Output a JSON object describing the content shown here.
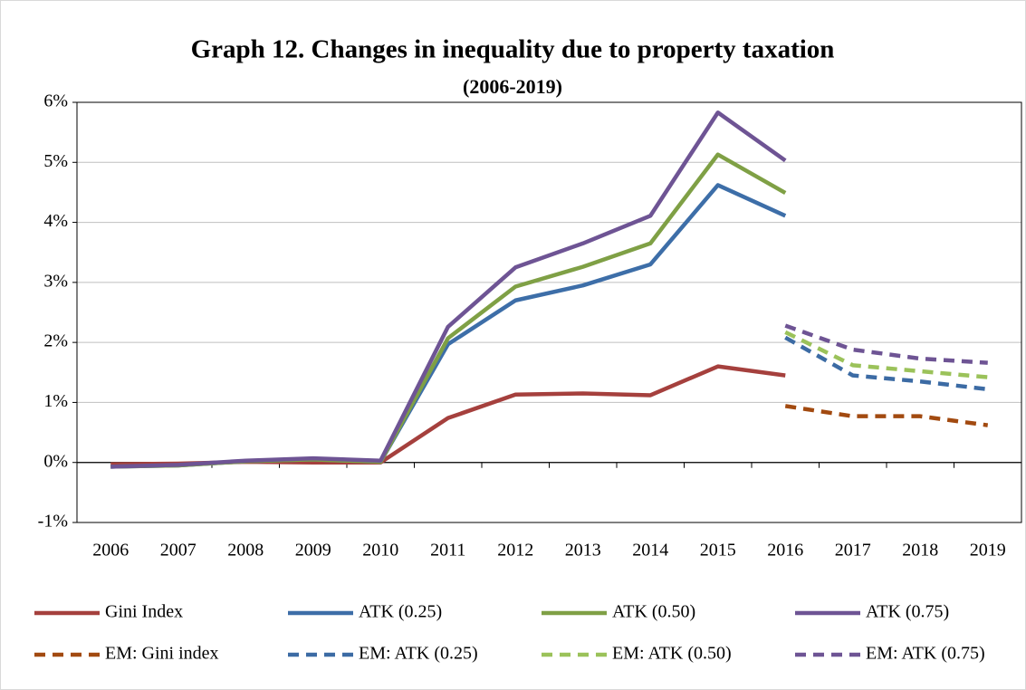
{
  "chart_data": {
    "type": "line",
    "title": "Graph 12. Changes in inequality due to property taxation",
    "subtitle": "(2006-2019)",
    "categories": [
      "2006",
      "2007",
      "2008",
      "2009",
      "2010",
      "2011",
      "2012",
      "2013",
      "2014",
      "2015",
      "2016",
      "2017",
      "2018",
      "2019"
    ],
    "series": [
      {
        "name": "Gini Index",
        "color": "#a5403d",
        "line_style": "solid",
        "values": [
          -0.03,
          -0.02,
          0.01,
          0.0,
          0.0,
          0.74,
          1.13,
          1.15,
          1.12,
          1.6,
          1.45,
          null,
          null,
          null
        ]
      },
      {
        "name": "ATK (0.25)",
        "color": "#3d6ea8",
        "line_style": "solid",
        "values": [
          -0.07,
          -0.05,
          0.02,
          0.05,
          0.01,
          1.97,
          2.7,
          2.95,
          3.3,
          4.62,
          4.11,
          null,
          null,
          null
        ]
      },
      {
        "name": "ATK (0.50)",
        "color": "#7fa045",
        "line_style": "solid",
        "values": [
          -0.07,
          -0.05,
          0.02,
          0.05,
          0.01,
          2.07,
          2.93,
          3.26,
          3.65,
          5.13,
          4.49,
          null,
          null,
          null
        ]
      },
      {
        "name": "ATK (0.75)",
        "color": "#6e5494",
        "line_style": "solid",
        "values": [
          -0.07,
          -0.04,
          0.03,
          0.07,
          0.03,
          2.26,
          3.25,
          3.65,
          4.11,
          5.83,
          5.03,
          null,
          null,
          null
        ]
      },
      {
        "name": "EM: Gini index",
        "color": "#a24a10",
        "line_style": "dashed",
        "values": [
          null,
          null,
          null,
          null,
          null,
          null,
          null,
          null,
          null,
          null,
          0.94,
          0.77,
          0.77,
          0.62
        ]
      },
      {
        "name": "EM: ATK (0.25)",
        "color": "#3c6ba4",
        "line_style": "dashed",
        "values": [
          null,
          null,
          null,
          null,
          null,
          null,
          null,
          null,
          null,
          null,
          2.08,
          1.45,
          1.35,
          1.22
        ]
      },
      {
        "name": "EM: ATK (0.50)",
        "color": "#9bc25a",
        "line_style": "dashed",
        "values": [
          null,
          null,
          null,
          null,
          null,
          null,
          null,
          null,
          null,
          null,
          2.17,
          1.62,
          1.52,
          1.42
        ]
      },
      {
        "name": "EM: ATK (0.75)",
        "color": "#6e5494",
        "line_style": "dashed",
        "values": [
          null,
          null,
          null,
          null,
          null,
          null,
          null,
          null,
          null,
          null,
          2.28,
          1.88,
          1.73,
          1.66
        ]
      }
    ],
    "ylim": [
      -1,
      6
    ],
    "yticks": [
      {
        "value": -1,
        "label": "-1%"
      },
      {
        "value": 0,
        "label": "0%"
      },
      {
        "value": 1,
        "label": "1%"
      },
      {
        "value": 2,
        "label": "2%"
      },
      {
        "value": 3,
        "label": "3%"
      },
      {
        "value": 4,
        "label": "4%"
      },
      {
        "value": 5,
        "label": "5%"
      },
      {
        "value": 6,
        "label": "6%"
      }
    ],
    "grid": true,
    "legend": "bottom"
  }
}
